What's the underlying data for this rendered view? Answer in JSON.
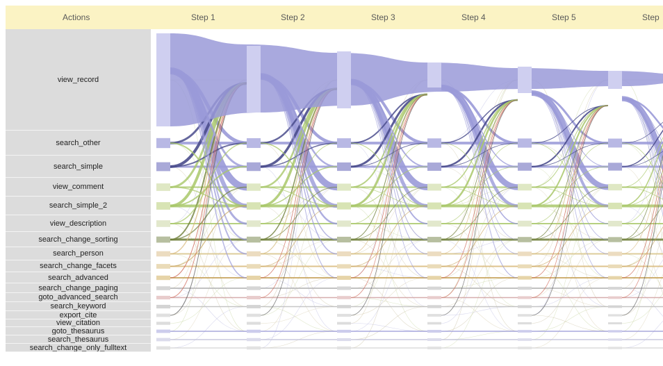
{
  "header": {
    "actions_label": "Actions",
    "steps": [
      "Step 1",
      "Step 2",
      "Step 3",
      "Step 4",
      "Step 5",
      "Step"
    ]
  },
  "actions": [
    "view_record",
    "search_other",
    "search_simple",
    "view_comment",
    "search_simple_2",
    "view_description",
    "search_change_sorting",
    "search_person",
    "search_change_facets",
    "search_advanced",
    "search_change_paging",
    "goto_advanced_search",
    "search_keyword",
    "export_cite",
    "view_citation",
    "goto_thesaurus",
    "search_thesaurus",
    "search_change_only_fulltext"
  ],
  "colors": {
    "header_bg": "#fbf3c4",
    "row_bg": "#dcdcdc",
    "primary_flow": "#9a9ad8",
    "secondary_flow": "#a9c86a",
    "dark_flow": "#4a4c8c",
    "accent_flow": "#d06a5a"
  }
}
